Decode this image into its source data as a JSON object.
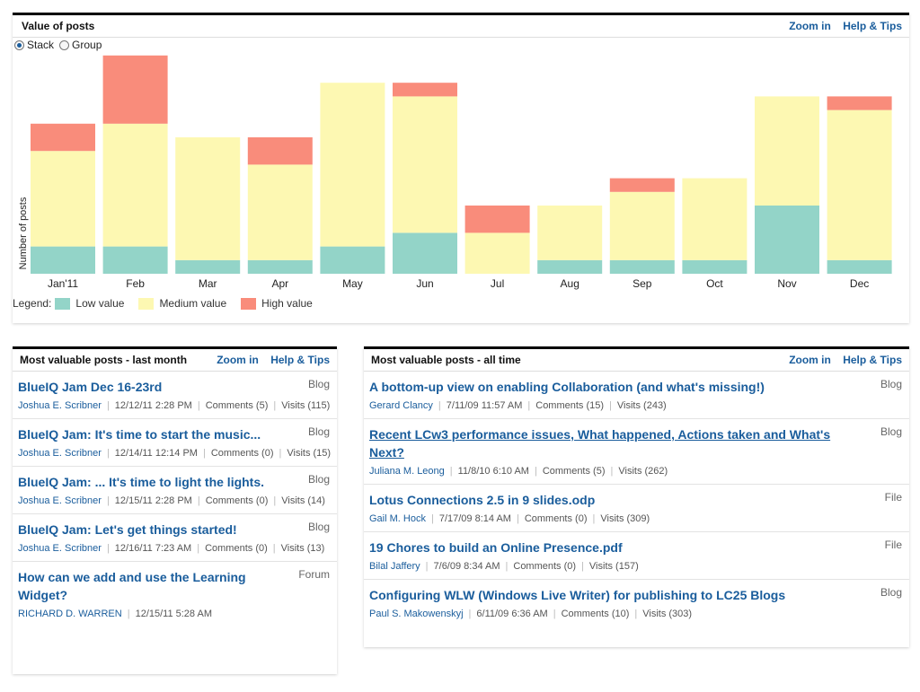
{
  "value_panel": {
    "title": "Value of posts",
    "zoom_label": "Zoom in",
    "help_label": "Help & Tips",
    "stack_label": "Stack",
    "group_label": "Group",
    "mode_selected": "stack",
    "legend_prefix": "Legend:",
    "legend_items": [
      {
        "label": "Low value",
        "color": "#93d4c8"
      },
      {
        "label": "Medium value",
        "color": "#fdf8b2"
      },
      {
        "label": "High value",
        "color": "#f98c7b"
      }
    ]
  },
  "chart_data": {
    "type": "bar",
    "stacked": true,
    "ylabel": "Number of posts",
    "xlabel": "",
    "grid": false,
    "legend_position": "bottom-left",
    "ylim": [
      0,
      16
    ],
    "categories": [
      "Jan'11",
      "Feb",
      "Mar",
      "Apr",
      "May",
      "Jun",
      "Jul",
      "Aug",
      "Sep",
      "Oct",
      "Nov",
      "Dec"
    ],
    "series": [
      {
        "name": "Low value",
        "color": "#93d4c8",
        "values": [
          2,
          2,
          1,
          1,
          2,
          3,
          0,
          1,
          1,
          1,
          5,
          1
        ]
      },
      {
        "name": "Medium value",
        "color": "#fdf8b2",
        "values": [
          7,
          9,
          9,
          7,
          12,
          10,
          3,
          4,
          5,
          6,
          8,
          11
        ]
      },
      {
        "name": "High value",
        "color": "#f98c7b",
        "values": [
          2,
          5,
          0,
          2,
          0,
          1,
          2,
          0,
          1,
          0,
          0,
          1
        ]
      }
    ]
  },
  "last_month": {
    "title": "Most valuable posts - last month",
    "zoom_label": "Zoom in",
    "help_label": "Help & Tips",
    "posts": [
      {
        "title": "BlueIQ Jam Dec 16-23rd",
        "type": "Blog",
        "author": "Joshua E. Scribner",
        "date": "12/12/11 2:28 PM",
        "comments": "Comments (5)",
        "visits": "Visits (115)"
      },
      {
        "title": "BlueIQ Jam: It's time to start the music...",
        "type": "Blog",
        "author": "Joshua E. Scribner",
        "date": "12/14/11 12:14 PM",
        "comments": "Comments (0)",
        "visits": "Visits (15)"
      },
      {
        "title": "BlueIQ Jam: ... It's time to light the lights.",
        "type": "Blog",
        "author": "Joshua E. Scribner",
        "date": "12/15/11 2:28 PM",
        "comments": "Comments (0)",
        "visits": "Visits (14)"
      },
      {
        "title": "BlueIQ Jam: Let's get things started!",
        "type": "Blog",
        "author": "Joshua E. Scribner",
        "date": "12/16/11 7:23 AM",
        "comments": "Comments (0)",
        "visits": "Visits (13)"
      },
      {
        "title": "How can we add and use the Learning Widget?",
        "type": "Forum",
        "author": "RICHARD D. WARREN",
        "date": "12/15/11 5:28 AM",
        "comments": "",
        "visits": ""
      }
    ]
  },
  "all_time": {
    "title": "Most valuable posts - all time",
    "zoom_label": "Zoom in",
    "help_label": "Help & Tips",
    "posts": [
      {
        "title": "A bottom-up view on enabling Collaboration (and what's missing!)",
        "type": "Blog",
        "author": "Gerard Clancy",
        "date": "7/11/09 11:57 AM",
        "comments": "Comments (15)",
        "visits": "Visits (243)"
      },
      {
        "title": "Recent LCw3 performance issues, What happened, Actions taken and What's Next?",
        "type": "Blog",
        "author": "Juliana M. Leong",
        "date": "11/8/10 6:10 AM",
        "comments": "Comments (5)",
        "visits": "Visits (262)",
        "underlined": true
      },
      {
        "title": "Lotus Connections 2.5 in 9 slides.odp",
        "type": "File",
        "author": "Gail M. Hock",
        "date": "7/17/09 8:14 AM",
        "comments": "Comments (0)",
        "visits": "Visits (309)"
      },
      {
        "title": "19 Chores to build an Online Presence.pdf",
        "type": "File",
        "author": "Bilal Jaffery",
        "date": "7/6/09 8:34 AM",
        "comments": "Comments (0)",
        "visits": "Visits (157)"
      },
      {
        "title": "Configuring WLW (Windows Live Writer) for publishing to LC25 Blogs",
        "type": "Blog",
        "author": "Paul S. Makowenskyj",
        "date": "6/11/09 6:36 AM",
        "comments": "Comments (10)",
        "visits": "Visits (303)"
      }
    ]
  }
}
